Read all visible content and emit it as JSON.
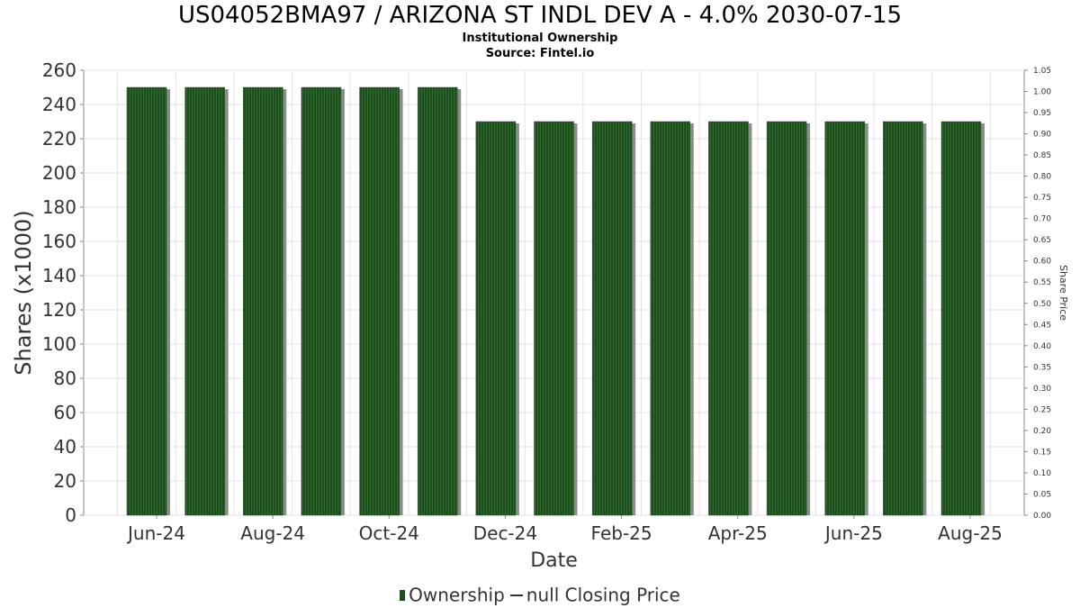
{
  "header": {
    "title": "US04052BMA97 / ARIZONA ST INDL DEV A - 4.0% 2030-07-15",
    "subtitle1": "Institutional Ownership",
    "subtitle2": "Source: Fintel.io"
  },
  "legend": {
    "ownership": "Ownership",
    "price": "null Closing Price"
  },
  "colors": {
    "bar": "#1e4d1e",
    "bar_stripe": "#2f6b2f",
    "bar_shadow": "#8c8c8c",
    "grid": "#e3e3e3",
    "axis": "#888888"
  },
  "chart_data": {
    "type": "bar",
    "title": "US04052BMA97 / ARIZONA ST INDL DEV A - 4.0% 2030-07-15",
    "xlabel": "Date",
    "ylabel": "Shares (x1000)",
    "y2label": "Share Price",
    "ylim": [
      0,
      260
    ],
    "y2lim": [
      0,
      1.05
    ],
    "yticks": [
      0,
      20,
      40,
      60,
      80,
      100,
      120,
      140,
      160,
      180,
      200,
      220,
      240,
      260
    ],
    "y2ticks": [
      "0.00",
      "0.05",
      "0.10",
      "0.15",
      "0.20",
      "0.25",
      "0.30",
      "0.35",
      "0.40",
      "0.45",
      "0.50",
      "0.55",
      "0.60",
      "0.65",
      "0.70",
      "0.75",
      "0.80",
      "0.85",
      "0.90",
      "0.95",
      "1.00",
      "1.05"
    ],
    "xtick_labels": [
      "Jun-24",
      "Aug-24",
      "Oct-24",
      "Dec-24",
      "Feb-25",
      "Apr-25",
      "Jun-25",
      "Aug-25"
    ],
    "grid": true,
    "legend_position": "bottom",
    "series": [
      {
        "name": "Ownership",
        "values": [
          250,
          250,
          250,
          250,
          250,
          250,
          230,
          230,
          230,
          230,
          230,
          230,
          230,
          230,
          230
        ]
      }
    ]
  }
}
